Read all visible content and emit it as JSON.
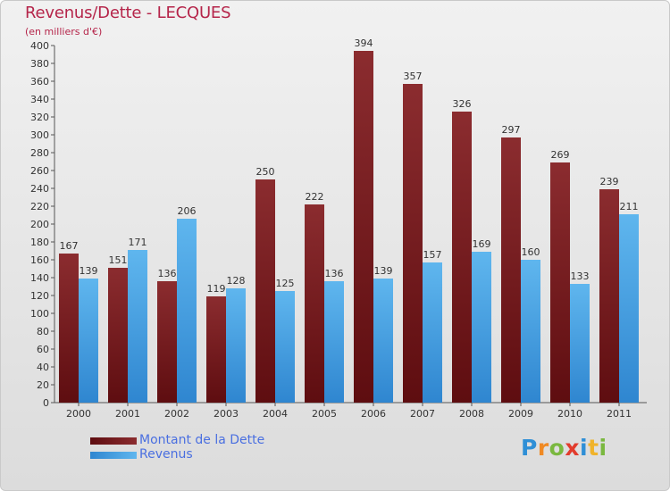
{
  "header": {
    "title": "Revenus/Dette - LECQUES",
    "subtitle": "(en milliers d'€)"
  },
  "legend": {
    "items": [
      {
        "label": "Montant de la Dette",
        "color": "#7b1e22"
      },
      {
        "label": "Revenus",
        "color": "#45a3e6"
      }
    ]
  },
  "logo": {
    "text": "Proxiti",
    "letters": [
      {
        "char": "P",
        "color": "#2f8fd6"
      },
      {
        "char": "r",
        "color": "#f08a24"
      },
      {
        "char": "o",
        "color": "#7ab83f"
      },
      {
        "char": "x",
        "color": "#e23c2d"
      },
      {
        "char": "i",
        "color": "#2f8fd6"
      },
      {
        "char": "t",
        "color": "#f0b32b"
      },
      {
        "char": "i",
        "color": "#7ab83f"
      }
    ]
  },
  "colors": {
    "dette_dark": "#5e0d10",
    "dette_light": "#8b2c2f",
    "revenus_dark": "#2f86d0",
    "revenus_light": "#5fb6ee",
    "title": "#b5254a"
  },
  "chart_data": {
    "type": "bar",
    "title": "Revenus/Dette - LECQUES",
    "subtitle": "(en milliers d'€)",
    "categories": [
      "2000",
      "2001",
      "2002",
      "2003",
      "2004",
      "2005",
      "2006",
      "2007",
      "2008",
      "2009",
      "2010",
      "2011"
    ],
    "series": [
      {
        "name": "Montant de la Dette",
        "values": [
          167,
          151,
          136,
          119,
          250,
          222,
          394,
          357,
          326,
          297,
          269,
          239
        ]
      },
      {
        "name": "Revenus",
        "values": [
          139,
          171,
          206,
          128,
          125,
          136,
          139,
          157,
          169,
          160,
          133,
          211
        ]
      }
    ],
    "ylim": [
      0,
      400
    ],
    "yticks": [
      0,
      20,
      40,
      60,
      80,
      100,
      120,
      140,
      160,
      180,
      200,
      220,
      240,
      260,
      280,
      300,
      320,
      340,
      360,
      380,
      400
    ],
    "grid": false,
    "legend_position": "bottom-left"
  }
}
